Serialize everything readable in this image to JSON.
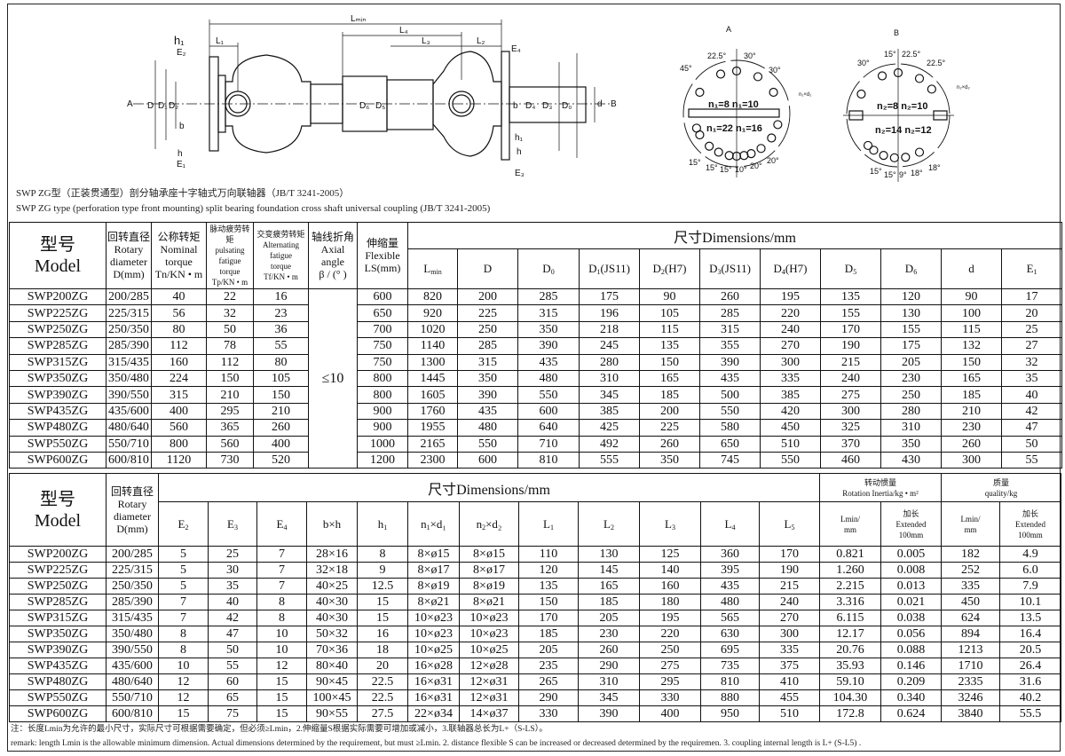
{
  "diagram": {
    "main_labels": {
      "A": "A",
      "B": "B",
      "Lmin": "Lₘᵢₙ",
      "L4": "L₄",
      "L1": "L₁",
      "L3": "L₃",
      "L2": "L₂",
      "E4": "E₄",
      "h1": "h₁",
      "E2": "E₂",
      "h": "h",
      "E1": "E₁",
      "E3": "E₃",
      "h1r": "h₁",
      "hr": "h",
      "D": "D",
      "D1": "D₁",
      "D2": "D₂",
      "b": "b",
      "D6": "D₆",
      "D5": "D₅",
      "b2": "b",
      "D4": "D₄",
      "D3": "D₃",
      "D0": "D₀",
      "d": "d"
    },
    "view_a": {
      "title": "A",
      "angles": [
        "45°",
        "22.5°",
        "30°",
        "30°",
        "15°",
        "15°",
        "15°",
        "10°",
        "20°",
        "20°"
      ],
      "n_top": "n₁=8  n₁=10",
      "n_bottom": "n₁=22 n₁=16",
      "hole_label": "n₁×d₁"
    },
    "view_b": {
      "title": "B",
      "angles": [
        "30°",
        "15°",
        "22.5°",
        "22.5°",
        "15°",
        "15°",
        "9°",
        "18°",
        "18°"
      ],
      "n_top": "n₂=8  n₂=10",
      "n_bottom": "n₂=14 n₂=12",
      "hole_label": "n₂×d₂"
    }
  },
  "caption": {
    "cn": "SWP ZG型（正装贯通型）剖分轴承座十字轴式万向联轴器（JB/T 3241-2005）",
    "en": "SWP ZG type (perforation type front mounting) split bearing foundation cross shaft universal coupling (JB/T 3241-2005)"
  },
  "table1": {
    "left_headers": [
      {
        "lines": [
          "型号",
          "Model"
        ],
        "style": "big"
      },
      {
        "lines": [
          "回转直径",
          "Rotary",
          "diameter",
          "D(mm)"
        ]
      },
      {
        "lines": [
          "公称转矩",
          "Nominal",
          "torque",
          "Tn/KN • m"
        ]
      },
      {
        "lines": [
          "脉动疲劳转矩",
          "pulsating",
          "fatigue",
          "torque",
          "Tp/KN • m"
        ],
        "style": "small"
      },
      {
        "lines": [
          "交变疲劳转矩",
          "Alternating",
          "fatigue",
          "torque",
          "Tf/KN • m"
        ],
        "style": "small"
      },
      {
        "lines": [
          "轴线折角",
          "Axial angle",
          "β / (° )"
        ]
      },
      {
        "lines": [
          "伸缩量",
          "Flexible",
          "LS(mm)"
        ]
      }
    ],
    "group": "尺寸Dimensions/mm",
    "dim_headers": [
      {
        "t": "L",
        "s": "min"
      },
      {
        "t": "D"
      },
      {
        "t": "D",
        "s": "0"
      },
      {
        "t": "D",
        "s": "1",
        "x": "(JS11)"
      },
      {
        "t": "D",
        "s": "2",
        "x": "(H7)"
      },
      {
        "t": "D",
        "s": "3",
        "x": "(JS11)"
      },
      {
        "t": "D",
        "s": "4",
        "x": "(H7)"
      },
      {
        "t": "D",
        "s": "5"
      },
      {
        "t": "D",
        "s": "6"
      },
      {
        "t": "d"
      },
      {
        "t": "E",
        "s": "1"
      }
    ],
    "axial_angle": "≤10",
    "rows": [
      [
        "SWP200ZG",
        "200/285",
        "40",
        "22",
        "16",
        "600",
        "820",
        "200",
        "285",
        "175",
        "90",
        "260",
        "195",
        "135",
        "120",
        "90",
        "17"
      ],
      [
        "SWP225ZG",
        "225/315",
        "56",
        "32",
        "23",
        "650",
        "920",
        "225",
        "315",
        "196",
        "105",
        "285",
        "220",
        "155",
        "130",
        "100",
        "20"
      ],
      [
        "SWP250ZG",
        "250/350",
        "80",
        "50",
        "36",
        "700",
        "1020",
        "250",
        "350",
        "218",
        "115",
        "315",
        "240",
        "170",
        "155",
        "115",
        "25"
      ],
      [
        "SWP285ZG",
        "285/390",
        "112",
        "78",
        "55",
        "750",
        "1140",
        "285",
        "390",
        "245",
        "135",
        "355",
        "270",
        "190",
        "175",
        "132",
        "27"
      ],
      [
        "SWP315ZG",
        "315/435",
        "160",
        "112",
        "80",
        "750",
        "1300",
        "315",
        "435",
        "280",
        "150",
        "390",
        "300",
        "215",
        "205",
        "150",
        "32"
      ],
      [
        "SWP350ZG",
        "350/480",
        "224",
        "150",
        "105",
        "800",
        "1445",
        "350",
        "480",
        "310",
        "165",
        "435",
        "335",
        "240",
        "230",
        "165",
        "35"
      ],
      [
        "SWP390ZG",
        "390/550",
        "315",
        "210",
        "150",
        "800",
        "1605",
        "390",
        "550",
        "345",
        "185",
        "500",
        "385",
        "275",
        "250",
        "185",
        "40"
      ],
      [
        "SWP435ZG",
        "435/600",
        "400",
        "295",
        "210",
        "900",
        "1760",
        "435",
        "600",
        "385",
        "200",
        "550",
        "420",
        "300",
        "280",
        "210",
        "42"
      ],
      [
        "SWP480ZG",
        "480/640",
        "560",
        "365",
        "260",
        "900",
        "1955",
        "480",
        "640",
        "425",
        "225",
        "580",
        "450",
        "325",
        "310",
        "230",
        "47"
      ],
      [
        "SWP550ZG",
        "550/710",
        "800",
        "560",
        "400",
        "1000",
        "2165",
        "550",
        "710",
        "492",
        "260",
        "650",
        "510",
        "370",
        "350",
        "260",
        "50"
      ],
      [
        "SWP600ZG",
        "600/810",
        "1120",
        "730",
        "520",
        "1200",
        "2300",
        "600",
        "810",
        "555",
        "350",
        "745",
        "550",
        "460",
        "430",
        "300",
        "55"
      ]
    ]
  },
  "table2": {
    "left_headers": [
      {
        "lines": [
          "型号",
          "Model"
        ],
        "style": "big"
      },
      {
        "lines": [
          "回转直径",
          "Rotary",
          "diameter",
          "D(mm)"
        ]
      }
    ],
    "group": "尺寸Dimensions/mm",
    "inertia_group": {
      "lines": [
        "转动惯量",
        "Rotation Inertia/kg • m²"
      ]
    },
    "mass_group": {
      "lines": [
        "质量",
        "quality/kg"
      ]
    },
    "dim_headers": [
      {
        "t": "E",
        "s": "2"
      },
      {
        "t": "E",
        "s": "3"
      },
      {
        "t": "E",
        "s": "4"
      },
      {
        "t": "b×h"
      },
      {
        "t": "h",
        "s": "1"
      },
      {
        "t": "n",
        "s": "1",
        "x": "×d₁"
      },
      {
        "t": "n",
        "s": "2",
        "x": "×d₂"
      },
      {
        "t": "L",
        "s": "1"
      },
      {
        "t": "L",
        "s": "2"
      },
      {
        "t": "L",
        "s": "3"
      },
      {
        "t": "L",
        "s": "4"
      },
      {
        "t": "L",
        "s": "5"
      }
    ],
    "sub_headers": [
      {
        "lines": [
          "Lmin/",
          "mm"
        ]
      },
      {
        "lines": [
          "加长",
          "Extended",
          "100mm"
        ]
      },
      {
        "lines": [
          "Lmin/",
          "mm"
        ]
      },
      {
        "lines": [
          "加长",
          "Extended",
          "100mm"
        ]
      }
    ],
    "rows": [
      [
        "SWP200ZG",
        "200/285",
        "5",
        "25",
        "7",
        "28×16",
        "8",
        "8×ø15",
        "8×ø15",
        "110",
        "130",
        "125",
        "360",
        "170",
        "0.821",
        "0.005",
        "182",
        "4.9"
      ],
      [
        "SWP225ZG",
        "225/315",
        "5",
        "30",
        "7",
        "32×18",
        "9",
        "8×ø17",
        "8×ø17",
        "120",
        "145",
        "140",
        "395",
        "190",
        "1.260",
        "0.008",
        "252",
        "6.0"
      ],
      [
        "SWP250ZG",
        "250/350",
        "5",
        "35",
        "7",
        "40×25",
        "12.5",
        "8×ø19",
        "8×ø19",
        "135",
        "165",
        "160",
        "435",
        "215",
        "2.215",
        "0.013",
        "335",
        "7.9"
      ],
      [
        "SWP285ZG",
        "285/390",
        "7",
        "40",
        "8",
        "40×30",
        "15",
        "8×ø21",
        "8×ø21",
        "150",
        "185",
        "180",
        "480",
        "240",
        "3.316",
        "0.021",
        "450",
        "10.1"
      ],
      [
        "SWP315ZG",
        "315/435",
        "7",
        "42",
        "8",
        "40×30",
        "15",
        "10×ø23",
        "10×ø23",
        "170",
        "205",
        "195",
        "565",
        "270",
        "6.115",
        "0.038",
        "624",
        "13.5"
      ],
      [
        "SWP350ZG",
        "350/480",
        "8",
        "47",
        "10",
        "50×32",
        "16",
        "10×ø23",
        "10×ø23",
        "185",
        "230",
        "220",
        "630",
        "300",
        "12.17",
        "0.056",
        "894",
        "16.4"
      ],
      [
        "SWP390ZG",
        "390/550",
        "8",
        "50",
        "10",
        "70×36",
        "18",
        "10×ø25",
        "10×ø25",
        "205",
        "260",
        "250",
        "695",
        "335",
        "20.76",
        "0.088",
        "1213",
        "20.5"
      ],
      [
        "SWP435ZG",
        "435/600",
        "10",
        "55",
        "12",
        "80×40",
        "20",
        "16×ø28",
        "12×ø28",
        "235",
        "290",
        "275",
        "735",
        "375",
        "35.93",
        "0.146",
        "1710",
        "26.4"
      ],
      [
        "SWP480ZG",
        "480/640",
        "12",
        "60",
        "15",
        "90×45",
        "22.5",
        "16×ø31",
        "12×ø31",
        "265",
        "310",
        "295",
        "810",
        "410",
        "59.10",
        "0.209",
        "2335",
        "31.6"
      ],
      [
        "SWP550ZG",
        "550/710",
        "12",
        "65",
        "15",
        "100×45",
        "22.5",
        "16×ø31",
        "12×ø31",
        "290",
        "345",
        "330",
        "880",
        "455",
        "104.30",
        "0.340",
        "3246",
        "40.2"
      ],
      [
        "SWP600ZG",
        "600/810",
        "15",
        "75",
        "15",
        "90×55",
        "27.5",
        "22×ø34",
        "14×ø37",
        "330",
        "390",
        "400",
        "950",
        "510",
        "172.8",
        "0.624",
        "3840",
        "55.5"
      ]
    ]
  },
  "remarks": {
    "cn": "注：长度Lmin为允许的最小尺寸，实际尺寸可根据需要确定，但必须≥Lmin，2.伸缩量S根据实际需要可增加或减小，3.联轴器总长为L+（S-LS）。",
    "en": "remark: length Lmin is the allowable minimum dimension. Actual dimensions determined by the requirement, but must ≥Lmin. 2. distance flexible S can be increased or decreased determined by the requiremen. 3. coupling internal length is L+ (S-L5) ."
  }
}
